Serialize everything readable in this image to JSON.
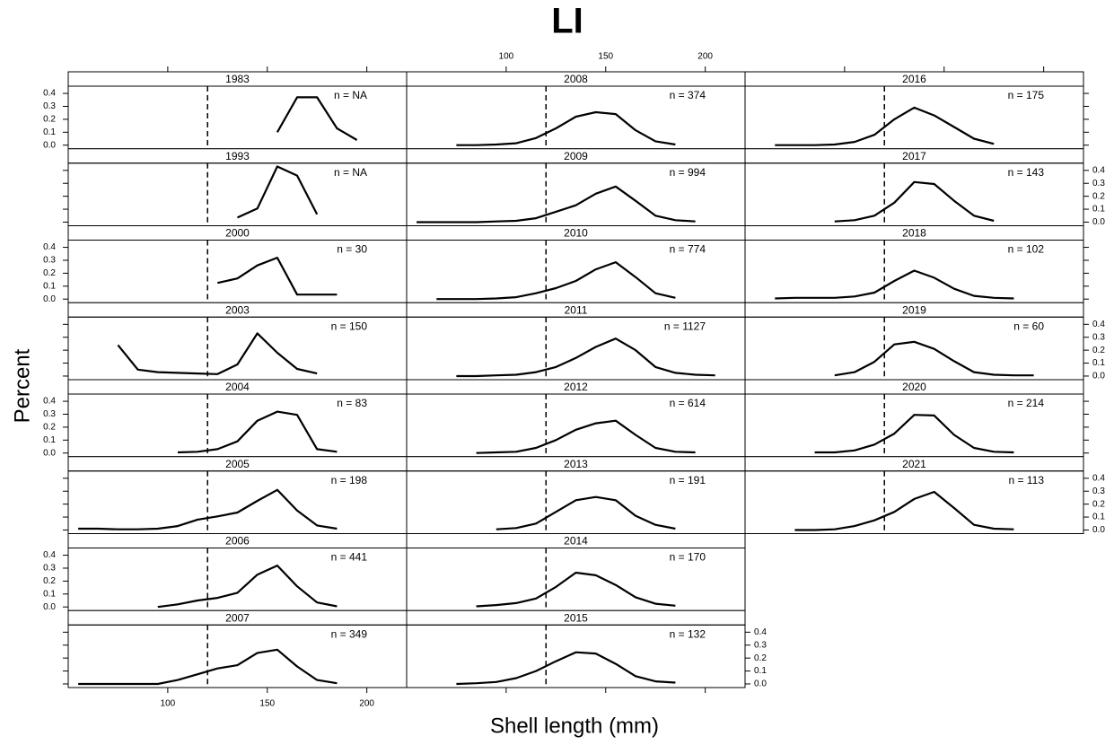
{
  "chart_data": {
    "type": "line",
    "title": "LI",
    "xlabel": "Shell length (mm)",
    "ylabel": "Percent",
    "xlim": [
      50,
      220
    ],
    "ylim": [
      -0.028,
      0.456
    ],
    "xticks": [
      100,
      150,
      200
    ],
    "yticks": [
      {
        "value": 0,
        "label": "0.0"
      },
      0.1,
      0.2,
      0.3,
      0.4
    ],
    "reference_line": 120,
    "color": "#000000",
    "panels": [
      {
        "name": "1983",
        "n_label": "n = NA",
        "x": [
          155,
          165,
          175,
          185,
          195
        ],
        "values": [
          0.1,
          0.37,
          0.37,
          0.13,
          0.04
        ]
      },
      {
        "name": "1993",
        "n_label": "n = NA",
        "x": [
          135,
          145,
          155,
          165,
          175
        ],
        "values": [
          0.035,
          0.105,
          0.43,
          0.36,
          0.06
        ]
      },
      {
        "name": "2000",
        "n_label": "n = 30",
        "x": [
          125,
          135,
          145,
          155,
          165,
          175,
          185
        ],
        "values": [
          0.125,
          0.16,
          0.26,
          0.32,
          0.035,
          0.035,
          0.035
        ]
      },
      {
        "name": "2003",
        "n_label": "n = 150",
        "x": [
          75,
          85,
          95,
          105,
          115,
          125,
          135,
          145,
          155,
          165,
          175
        ],
        "values": [
          0.24,
          0.05,
          0.03,
          0.025,
          0.02,
          0.015,
          0.09,
          0.33,
          0.18,
          0.055,
          0.02
        ]
      },
      {
        "name": "2004",
        "n_label": "n = 83",
        "x": [
          105,
          115,
          125,
          135,
          145,
          155,
          165,
          175,
          185
        ],
        "values": [
          0.005,
          0.01,
          0.03,
          0.09,
          0.25,
          0.32,
          0.295,
          0.03,
          0.01
        ]
      },
      {
        "name": "2005",
        "n_label": "n = 198",
        "x": [
          55,
          65,
          75,
          85,
          95,
          105,
          115,
          125,
          135,
          145,
          155,
          165,
          175,
          185
        ],
        "values": [
          0.01,
          0.01,
          0.005,
          0.005,
          0.01,
          0.03,
          0.08,
          0.105,
          0.135,
          0.225,
          0.31,
          0.15,
          0.035,
          0.01
        ]
      },
      {
        "name": "2006",
        "n_label": "n = 441",
        "x": [
          95,
          105,
          115,
          125,
          135,
          145,
          155,
          165,
          175,
          185
        ],
        "values": [
          0.0,
          0.02,
          0.05,
          0.07,
          0.11,
          0.25,
          0.32,
          0.16,
          0.035,
          0.005
        ]
      },
      {
        "name": "2007",
        "n_label": "n = 349",
        "x": [
          55,
          65,
          75,
          85,
          95,
          105,
          115,
          125,
          135,
          145,
          155,
          165,
          175,
          185
        ],
        "values": [
          0,
          0,
          0,
          0,
          0,
          0.03,
          0.075,
          0.12,
          0.145,
          0.24,
          0.265,
          0.135,
          0.03,
          0.005
        ]
      },
      {
        "name": "2008",
        "n_label": "n = 374",
        "x": [
          75,
          85,
          95,
          105,
          115,
          125,
          135,
          145,
          155,
          165,
          175,
          185
        ],
        "values": [
          0,
          0,
          0.005,
          0.015,
          0.055,
          0.13,
          0.22,
          0.255,
          0.24,
          0.115,
          0.03,
          0.005
        ]
      },
      {
        "name": "2009",
        "n_label": "n = 994",
        "x": [
          55,
          65,
          75,
          85,
          95,
          105,
          115,
          125,
          135,
          145,
          155,
          165,
          175,
          185,
          195
        ],
        "values": [
          0,
          0,
          0,
          0,
          0.005,
          0.01,
          0.03,
          0.08,
          0.13,
          0.22,
          0.275,
          0.165,
          0.05,
          0.015,
          0.005
        ]
      },
      {
        "name": "2010",
        "n_label": "n = 774",
        "x": [
          65,
          75,
          85,
          95,
          105,
          115,
          125,
          135,
          145,
          155,
          165,
          175,
          185
        ],
        "values": [
          0,
          0,
          0,
          0.005,
          0.015,
          0.045,
          0.085,
          0.14,
          0.23,
          0.285,
          0.17,
          0.045,
          0.01
        ]
      },
      {
        "name": "2011",
        "n_label": "n = 1127",
        "x": [
          75,
          85,
          95,
          105,
          115,
          125,
          135,
          145,
          155,
          165,
          175,
          185,
          195,
          205
        ],
        "values": [
          0,
          0,
          0.005,
          0.01,
          0.03,
          0.07,
          0.14,
          0.225,
          0.29,
          0.2,
          0.07,
          0.025,
          0.01,
          0.005
        ]
      },
      {
        "name": "2012",
        "n_label": "n = 614",
        "x": [
          85,
          95,
          105,
          115,
          125,
          135,
          145,
          155,
          165,
          175,
          185,
          195
        ],
        "values": [
          0,
          0.005,
          0.01,
          0.04,
          0.1,
          0.18,
          0.23,
          0.25,
          0.14,
          0.04,
          0.01,
          0.005
        ]
      },
      {
        "name": "2013",
        "n_label": "n = 191",
        "x": [
          95,
          105,
          115,
          125,
          135,
          145,
          155,
          165,
          175,
          185
        ],
        "values": [
          0.005,
          0.015,
          0.05,
          0.14,
          0.23,
          0.255,
          0.23,
          0.11,
          0.04,
          0.01
        ]
      },
      {
        "name": "2014",
        "n_label": "n = 170",
        "x": [
          85,
          95,
          105,
          115,
          125,
          135,
          145,
          155,
          165,
          175,
          185
        ],
        "values": [
          0.005,
          0.015,
          0.03,
          0.065,
          0.155,
          0.265,
          0.245,
          0.17,
          0.075,
          0.025,
          0.01
        ]
      },
      {
        "name": "2015",
        "n_label": "n = 132",
        "x": [
          75,
          85,
          95,
          105,
          115,
          125,
          135,
          145,
          155,
          165,
          175,
          185
        ],
        "values": [
          0,
          0.005,
          0.015,
          0.045,
          0.1,
          0.175,
          0.245,
          0.235,
          0.155,
          0.06,
          0.02,
          0.01
        ]
      },
      {
        "name": "2016",
        "n_label": "n = 175",
        "x": [
          65,
          75,
          85,
          95,
          105,
          115,
          125,
          135,
          145,
          155,
          165,
          175
        ],
        "values": [
          0,
          0,
          0,
          0.005,
          0.025,
          0.08,
          0.2,
          0.29,
          0.23,
          0.14,
          0.05,
          0.01
        ]
      },
      {
        "name": "2017",
        "n_label": "n = 143",
        "x": [
          95,
          105,
          115,
          125,
          135,
          145,
          155,
          165,
          175
        ],
        "values": [
          0.005,
          0.015,
          0.05,
          0.15,
          0.31,
          0.295,
          0.165,
          0.05,
          0.01
        ]
      },
      {
        "name": "2018",
        "n_label": "n = 102",
        "x": [
          65,
          75,
          85,
          95,
          105,
          115,
          125,
          135,
          145,
          155,
          165,
          175,
          185
        ],
        "values": [
          0.005,
          0.01,
          0.01,
          0.01,
          0.02,
          0.05,
          0.14,
          0.22,
          0.165,
          0.08,
          0.025,
          0.01,
          0.005
        ]
      },
      {
        "name": "2019",
        "n_label": "n = 60",
        "x": [
          95,
          105,
          115,
          125,
          135,
          145,
          155,
          165,
          175,
          185,
          195
        ],
        "values": [
          0.005,
          0.03,
          0.11,
          0.245,
          0.265,
          0.21,
          0.115,
          0.03,
          0.01,
          0.005,
          0.005
        ]
      },
      {
        "name": "2020",
        "n_label": "n = 214",
        "x": [
          85,
          95,
          105,
          115,
          125,
          135,
          145,
          155,
          165,
          175,
          185
        ],
        "values": [
          0.005,
          0.005,
          0.02,
          0.065,
          0.15,
          0.295,
          0.29,
          0.14,
          0.04,
          0.01,
          0.005
        ]
      },
      {
        "name": "2021",
        "n_label": "n = 113",
        "x": [
          75,
          85,
          95,
          105,
          115,
          125,
          135,
          145,
          155,
          165,
          175,
          185
        ],
        "values": [
          0,
          0,
          0.005,
          0.03,
          0.075,
          0.14,
          0.24,
          0.295,
          0.17,
          0.04,
          0.01,
          0.005
        ]
      }
    ]
  }
}
